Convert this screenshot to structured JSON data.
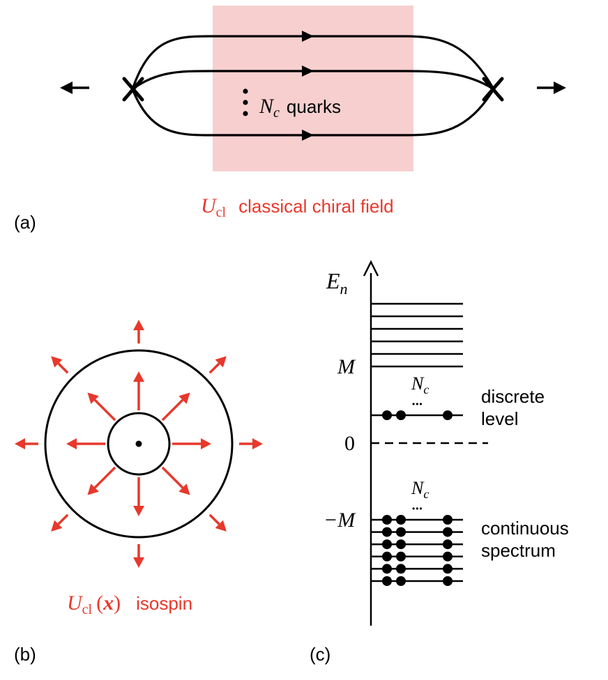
{
  "panel_a": {
    "label": "(a)",
    "quarks_symbol": "N",
    "quarks_subscript": "c",
    "quarks_word": "quarks",
    "field_symbol": "U",
    "field_subscript": "cl",
    "field_caption": "classical chiral field",
    "shade_color": "#f7cfcf",
    "accent_color": "#e8382c"
  },
  "panel_b": {
    "label": "(b)",
    "field_symbol": "U",
    "field_subscript": "cl",
    "field_argument": "x",
    "caption": "isospin",
    "arrow_color": "#e8382c"
  },
  "panel_c": {
    "label": "(c)",
    "axis_symbol": "E",
    "axis_subscript": "n",
    "tick_M": "M",
    "tick_zero": "0",
    "tick_minus_M": "−M",
    "nc_symbol": "N",
    "nc_subscript": "c",
    "dots": "•••",
    "discrete_line1": "discrete",
    "discrete_line2": "level",
    "continuum_line1": "continuous",
    "continuum_line2": "spectrum"
  }
}
